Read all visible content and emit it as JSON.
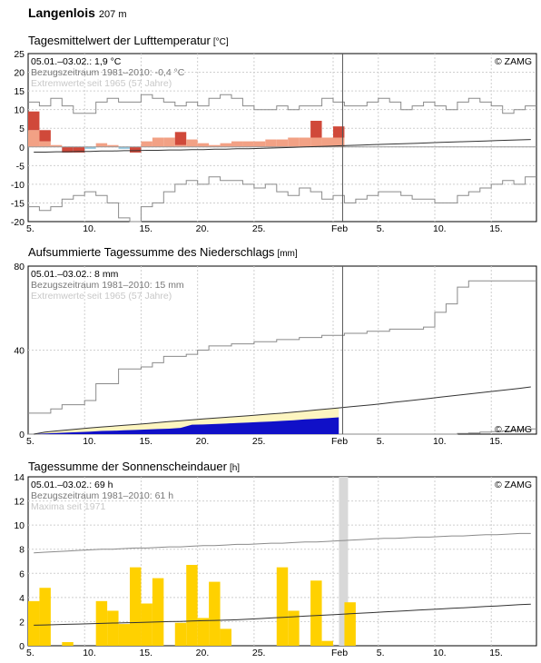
{
  "header": {
    "station": "Langenlois",
    "altitude": "207 m"
  },
  "x_axis": {
    "days_total": 45,
    "feb_day_index": 27,
    "ticks": [
      {
        "i": 0,
        "label": "5."
      },
      {
        "i": 5,
        "label": "10."
      },
      {
        "i": 10,
        "label": "15."
      },
      {
        "i": 15,
        "label": "20."
      },
      {
        "i": 20,
        "label": "25."
      },
      {
        "i": 27,
        "label": "Feb"
      },
      {
        "i": 31,
        "label": "5."
      },
      {
        "i": 36,
        "label": "10."
      },
      {
        "i": 41,
        "label": "15."
      }
    ]
  },
  "copyright": "© ZAMG",
  "chart_data": [
    {
      "type": "bar",
      "id": "temperature",
      "title": "Tagesmittelwert der Lufttemperatur",
      "unit": "[°C]",
      "ylim": [
        -20,
        25
      ],
      "yticks": [
        -20,
        -15,
        -10,
        -5,
        0,
        5,
        10,
        15,
        20,
        25
      ],
      "info": [
        "05.01.–03.02.: 1,9 °C",
        "Bezugszeitraum 1981–2010: -0,4 °C",
        "Extremwerte seit 1965 (57 Jahre)"
      ],
      "values": [
        4.5,
        1.5,
        0.5,
        -1.5,
        -1.5,
        -0.5,
        1.0,
        0.5,
        -0.5,
        -1.5,
        1.5,
        2.5,
        2.5,
        0.5,
        2.0,
        1.0,
        0.5,
        1.0,
        1.5,
        1.5,
        1.5,
        2.0,
        2.0,
        2.5,
        2.5,
        2.5,
        2.5,
        2.5
      ],
      "max_values": [
        10.0,
        4.5,
        0,
        0,
        0,
        0,
        0,
        0,
        0,
        0,
        0,
        0,
        0,
        4.0,
        0,
        0,
        0,
        0,
        0,
        0,
        0,
        0,
        0,
        0,
        0,
        4.0,
        0,
        4.0
      ],
      "max_row_values": [
        9.5,
        4.5,
        0,
        0,
        0,
        0,
        0,
        0,
        0,
        0,
        0,
        0,
        0,
        4.0,
        0,
        0,
        0,
        0,
        0,
        0,
        0,
        0,
        0,
        0,
        0,
        7.0,
        0,
        5.5
      ],
      "normal": [
        -1.4,
        -1.4,
        -1.3,
        -1.3,
        -1.2,
        -1.2,
        -1.1,
        -1.1,
        -1.0,
        -1.0,
        -0.9,
        -0.9,
        -0.8,
        -0.8,
        -0.7,
        -0.7,
        -0.6,
        -0.6,
        -0.5,
        -0.5,
        -0.4,
        -0.3,
        -0.2,
        -0.1,
        0.0,
        0.1,
        0.2,
        0.3,
        0.4,
        0.5,
        0.6,
        0.7,
        0.8,
        0.9,
        1.0,
        1.1,
        1.2,
        1.3,
        1.4,
        1.5,
        1.6,
        1.7,
        1.8,
        1.9,
        2.0
      ],
      "extreme_max": [
        12,
        11,
        13,
        11,
        9,
        9,
        12,
        13,
        12,
        12,
        14,
        13,
        12,
        11,
        12,
        11,
        13,
        14,
        13,
        11,
        10,
        10,
        11,
        10,
        11,
        11,
        13,
        12,
        11,
        11,
        12,
        13,
        12,
        10,
        11,
        12,
        11,
        10,
        12,
        13,
        12,
        11,
        9,
        10,
        11
      ],
      "extreme_min": [
        -16,
        -17,
        -16,
        -14,
        -13,
        -12,
        -13,
        -15,
        -19,
        -20,
        -16,
        -15,
        -12,
        -10,
        -9,
        -10,
        -8,
        -9,
        -9,
        -10,
        -11,
        -10,
        -12,
        -13,
        -11,
        -12,
        -14,
        -13,
        -15,
        -14,
        -13,
        -12,
        -12,
        -13,
        -14,
        -14,
        -15,
        -15,
        -13,
        -12,
        -11,
        -10,
        -9,
        -10,
        -8
      ]
    },
    {
      "type": "area",
      "id": "precipitation",
      "title": "Aufsummierte Tagessumme des Niederschlags",
      "unit": "[mm]",
      "ylim": [
        0,
        80
      ],
      "yticks": [
        0,
        40,
        80
      ],
      "info": [
        "05.01.–03.02.: 8 mm",
        "Bezugszeitraum 1981–2010: 15 mm",
        "Extremwerte seit 1965 (57 Jahre)"
      ],
      "values": [
        0,
        0.3,
        0.5,
        0.8,
        1.0,
        1.2,
        1.5,
        1.6,
        1.8,
        2.0,
        2.2,
        2.4,
        2.6,
        3.0,
        4.5,
        4.6,
        4.8,
        5.0,
        5.3,
        5.5,
        5.8,
        6.0,
        6.3,
        6.6,
        7.0,
        7.3,
        7.6,
        8.0
      ],
      "normal": [
        0,
        1.0,
        1.5,
        2.0,
        2.5,
        3.0,
        3.4,
        3.8,
        4.2,
        4.6,
        5.0,
        5.5,
        6.0,
        6.4,
        6.8,
        7.2,
        7.6,
        8.0,
        8.4,
        8.8,
        9.2,
        9.6,
        10.0,
        10.5,
        11.0,
        11.5,
        12.0,
        12.5,
        13.0,
        13.5,
        14.0,
        14.6,
        15.2,
        15.8,
        16.4,
        17.0,
        17.6,
        18.2,
        18.8,
        19.4,
        20.0,
        20.6,
        21.2,
        21.8,
        22.5
      ],
      "extreme_max": [
        10,
        10,
        12,
        14,
        14,
        16,
        24,
        24,
        31,
        31,
        32,
        34,
        37,
        37,
        38,
        40,
        42,
        42,
        43,
        43,
        44,
        44,
        45,
        45,
        46,
        46,
        47,
        47,
        48,
        48,
        49,
        49,
        50,
        50,
        50,
        51,
        58,
        62,
        70,
        73,
        73,
        73,
        73,
        73,
        73
      ],
      "extreme_min": [
        0,
        0,
        0,
        0,
        0,
        0,
        0,
        0,
        0,
        0,
        0,
        0,
        0,
        0,
        0,
        0,
        0,
        0,
        0,
        0,
        0,
        0,
        0,
        0,
        0,
        0,
        0,
        0,
        0,
        0,
        0,
        0,
        0,
        0,
        0,
        0,
        0,
        0,
        0.3,
        0.5,
        1.0,
        1.2,
        1.5,
        2.0,
        2.5
      ]
    },
    {
      "type": "bar",
      "id": "sunshine",
      "title": "Tagessumme der Sonnenscheindauer",
      "unit": "[h]",
      "ylim": [
        0,
        14
      ],
      "yticks": [
        0,
        2,
        4,
        6,
        8,
        10,
        12,
        14
      ],
      "info": [
        "05.01.–03.02.: 69 h",
        "Bezugszeitraum 1981–2010: 61 h",
        "Maxima seit 1971"
      ],
      "values": [
        3.7,
        4.8,
        0,
        0.3,
        0,
        0,
        3.7,
        2.9,
        1.8,
        6.5,
        3.5,
        5.6,
        0,
        1.9,
        6.7,
        2.3,
        5.3,
        1.4,
        0,
        0,
        0,
        0,
        6.5,
        2.9,
        0,
        5.4,
        0.4,
        0,
        3.6,
        0
      ],
      "normal": [
        1.7,
        1.72,
        1.75,
        1.78,
        1.8,
        1.82,
        1.85,
        1.88,
        1.9,
        1.92,
        1.95,
        1.98,
        2.0,
        2.02,
        2.05,
        2.08,
        2.1,
        2.12,
        2.15,
        2.2,
        2.25,
        2.3,
        2.35,
        2.4,
        2.45,
        2.5,
        2.55,
        2.6,
        2.65,
        2.7,
        2.75,
        2.8,
        2.85,
        2.9,
        2.95,
        3.0,
        3.05,
        3.1,
        3.15,
        3.2,
        3.25,
        3.3,
        3.35,
        3.4,
        3.45
      ],
      "extreme_max": [
        7.7,
        7.75,
        7.8,
        7.85,
        7.9,
        7.95,
        8.0,
        8.0,
        8.05,
        8.1,
        8.1,
        8.15,
        8.2,
        8.2,
        8.25,
        8.3,
        8.3,
        8.35,
        8.4,
        8.4,
        8.45,
        8.5,
        8.5,
        8.55,
        8.6,
        8.6,
        8.65,
        8.7,
        8.75,
        8.8,
        8.85,
        8.9,
        8.9,
        8.95,
        9.0,
        9.0,
        9.05,
        9.1,
        9.1,
        9.15,
        9.2,
        9.2,
        9.25,
        9.3,
        9.3
      ]
    }
  ]
}
